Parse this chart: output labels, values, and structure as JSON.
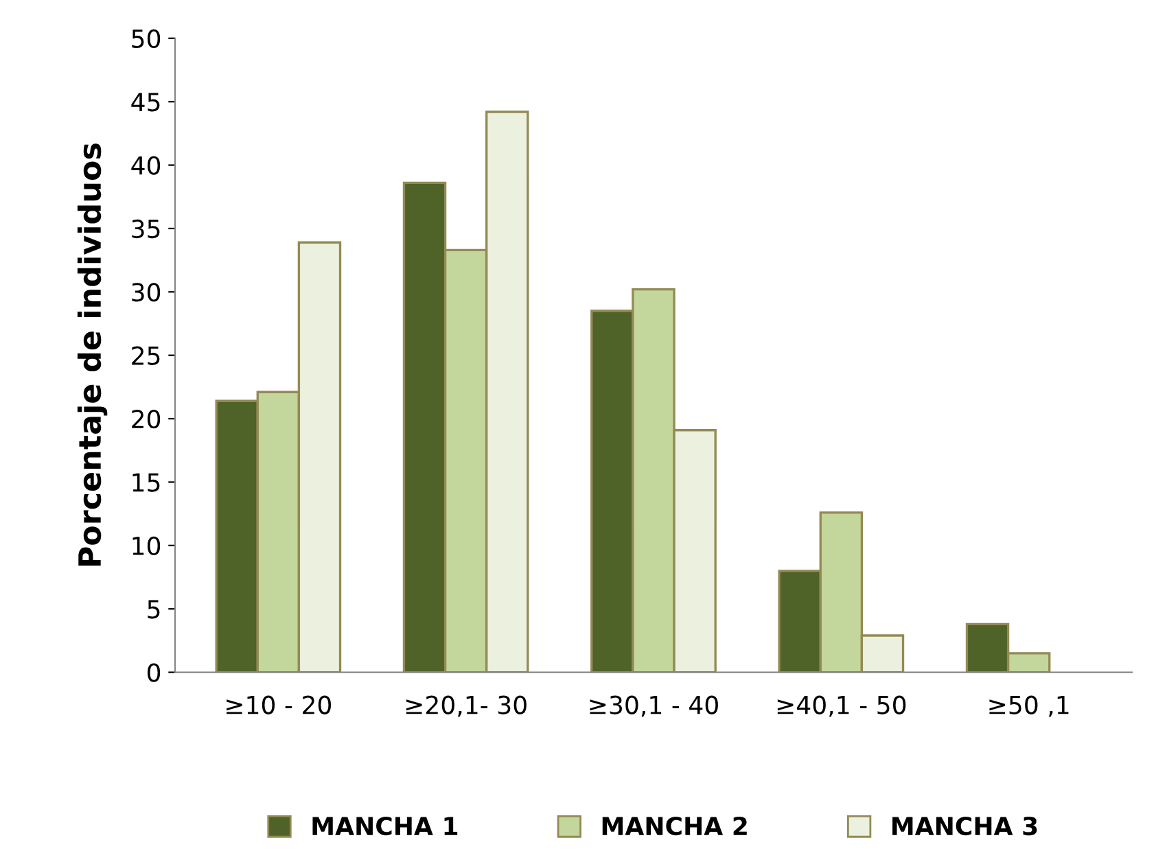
{
  "chart_data": {
    "type": "bar",
    "ylabel": "Porcentaje de individuos",
    "categories": [
      "≥10 - 20",
      "≥20,1- 30",
      "≥30,1 - 40",
      "≥40,1 - 50",
      "≥50 ,1"
    ],
    "series": [
      {
        "name": "MANCHA 1",
        "color": "#4f6228",
        "values": [
          21.4,
          38.6,
          28.5,
          8.0,
          3.8
        ]
      },
      {
        "name": "MANCHA 2",
        "color": "#c3d69b",
        "values": [
          22.1,
          33.3,
          30.2,
          12.6,
          1.5
        ]
      },
      {
        "name": "MANCHA 3",
        "color": "#ebf1de",
        "values": [
          33.9,
          44.2,
          19.1,
          2.9,
          null
        ]
      }
    ],
    "ylim": [
      0,
      50
    ],
    "yticks": [
      0,
      5,
      10,
      15,
      20,
      25,
      30,
      35,
      40,
      45,
      50
    ],
    "grid": false,
    "legend": "bottom"
  }
}
